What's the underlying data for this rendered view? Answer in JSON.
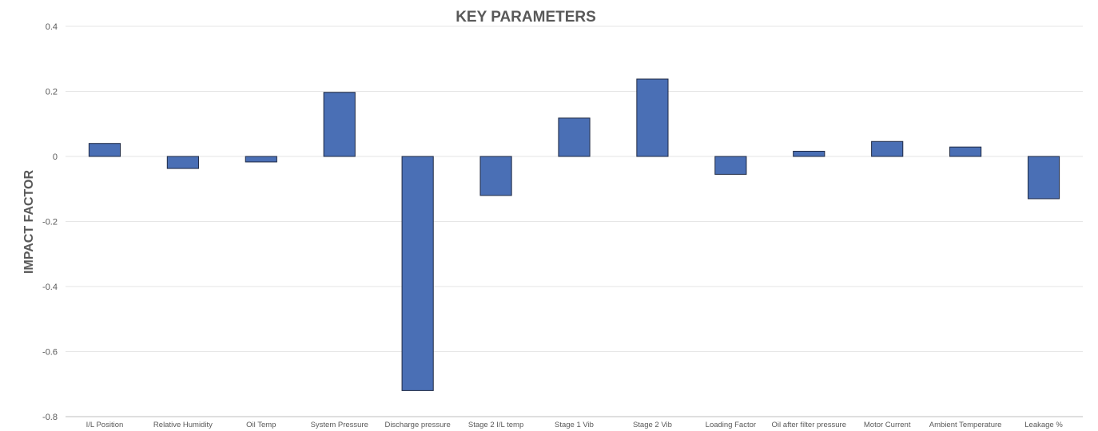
{
  "chart_data": {
    "type": "bar",
    "title": "KEY PARAMETERS",
    "xlabel": "",
    "ylabel": "IMPACT FACTOR",
    "ylim": [
      -0.8,
      0.4
    ],
    "yticks": [
      "0.4",
      "0.2",
      "0",
      "-0.2",
      "-0.4",
      "-0.6",
      "-0.8"
    ],
    "ytick_values": [
      0.4,
      0.2,
      0,
      -0.2,
      -0.4,
      -0.6,
      -0.8
    ],
    "grid": true,
    "categories": [
      "I/L Position",
      "Relative Humidity",
      "Oil Temp",
      "System Pressure",
      "Discharge pressure",
      "Stage 2 I/L temp",
      "Stage 1 Vib",
      "Stage 2 Vib",
      "Loading Factor",
      "Oil after filter pressure",
      "Motor Current",
      "Ambient Temperature",
      "Leakage %"
    ],
    "values": [
      0.04,
      -0.037,
      -0.017,
      0.197,
      -0.72,
      -0.12,
      0.118,
      0.238,
      -0.055,
      0.016,
      0.046,
      0.029,
      -0.13
    ],
    "bar_color": "#4a6fb5"
  }
}
